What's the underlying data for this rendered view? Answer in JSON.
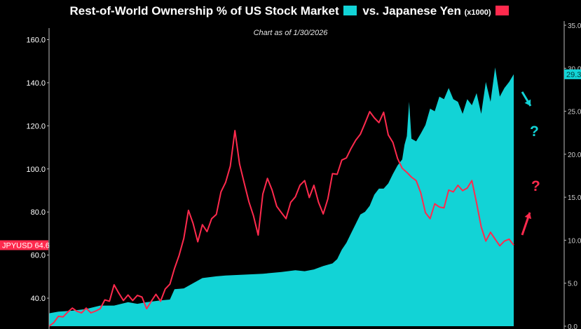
{
  "chart_data": {
    "type": "area",
    "title_main": "Rest-of-World Ownership % of US Stock Market",
    "title_vs": "vs. Japanese Yen",
    "title_unit": "(x1000)",
    "subtitle": "Chart as of 1/30/2026",
    "left_axis": {
      "ticks": [
        40,
        60,
        80,
        100,
        120,
        140,
        160
      ],
      "tick_labels": [
        "40.0",
        "60.0",
        "80.0",
        "100.0",
        "120.0",
        "140.0",
        "160.0"
      ],
      "range": [
        27,
        167
      ]
    },
    "right_axis": {
      "ticks": [
        0,
        5,
        10,
        15,
        20,
        25,
        30,
        35
      ],
      "tick_labels": [
        "0.0",
        "5.0",
        "10.0",
        "15.0",
        "20.0",
        "25.0",
        "30.0",
        "35.0"
      ],
      "range": [
        0,
        35
      ]
    },
    "series": [
      {
        "name": "Rest-of-World Ownership % of US Stock Market",
        "axis": "right",
        "color": "#12d3d6",
        "last_value_label": "29.3",
        "points": [
          [
            0,
            1.5
          ],
          [
            0.02,
            1.7
          ],
          [
            0.05,
            1.8
          ],
          [
            0.08,
            2.0
          ],
          [
            0.11,
            2.4
          ],
          [
            0.14,
            2.4
          ],
          [
            0.17,
            2.8
          ],
          [
            0.19,
            2.6
          ],
          [
            0.21,
            2.8
          ],
          [
            0.24,
            3.0
          ],
          [
            0.26,
            3.1
          ],
          [
            0.27,
            4.3
          ],
          [
            0.29,
            4.4
          ],
          [
            0.31,
            5.0
          ],
          [
            0.33,
            5.6
          ],
          [
            0.36,
            5.8
          ],
          [
            0.38,
            5.9
          ],
          [
            0.42,
            6.0
          ],
          [
            0.46,
            6.1
          ],
          [
            0.5,
            6.3
          ],
          [
            0.53,
            6.5
          ],
          [
            0.55,
            6.4
          ],
          [
            0.57,
            6.6
          ],
          [
            0.59,
            7.0
          ],
          [
            0.61,
            7.3
          ],
          [
            0.62,
            7.8
          ],
          [
            0.63,
            8.9
          ],
          [
            0.64,
            9.7
          ],
          [
            0.65,
            10.8
          ],
          [
            0.66,
            11.9
          ],
          [
            0.67,
            13.0
          ],
          [
            0.68,
            13.3
          ],
          [
            0.69,
            14.0
          ],
          [
            0.7,
            15.3
          ],
          [
            0.71,
            16.0
          ],
          [
            0.72,
            16.0
          ],
          [
            0.73,
            16.6
          ],
          [
            0.74,
            17.7
          ],
          [
            0.75,
            18.7
          ],
          [
            0.76,
            19.4
          ],
          [
            0.765,
            21.1
          ],
          [
            0.77,
            22.1
          ],
          [
            0.775,
            26.1
          ],
          [
            0.78,
            21.8
          ],
          [
            0.79,
            21.5
          ],
          [
            0.8,
            22.4
          ],
          [
            0.81,
            23.4
          ],
          [
            0.82,
            25.3
          ],
          [
            0.83,
            25.0
          ],
          [
            0.84,
            26.7
          ],
          [
            0.85,
            26.4
          ],
          [
            0.86,
            27.7
          ],
          [
            0.87,
            26.4
          ],
          [
            0.88,
            26.1
          ],
          [
            0.89,
            24.7
          ],
          [
            0.9,
            26.4
          ],
          [
            0.91,
            25.7
          ],
          [
            0.92,
            27.1
          ],
          [
            0.93,
            24.7
          ],
          [
            0.94,
            28.4
          ],
          [
            0.95,
            26.1
          ],
          [
            0.96,
            30.1
          ],
          [
            0.97,
            26.7
          ],
          [
            0.98,
            27.7
          ],
          [
            0.99,
            28.4
          ],
          [
            1,
            29.3
          ]
        ]
      },
      {
        "name": "Japanese Yen (x1000)",
        "axis": "left",
        "color": "#ff2a4d",
        "last_value_label": "JPYUSD 64.6",
        "points": [
          [
            0,
            27.0
          ],
          [
            0.01,
            28.6
          ],
          [
            0.02,
            31.6
          ],
          [
            0.03,
            31.3
          ],
          [
            0.04,
            33.5
          ],
          [
            0.05,
            35.4
          ],
          [
            0.06,
            33.9
          ],
          [
            0.07,
            33.2
          ],
          [
            0.08,
            35.4
          ],
          [
            0.09,
            33.2
          ],
          [
            0.1,
            34.0
          ],
          [
            0.11,
            35.1
          ],
          [
            0.12,
            39.2
          ],
          [
            0.13,
            38.6
          ],
          [
            0.14,
            46.2
          ],
          [
            0.15,
            42.4
          ],
          [
            0.16,
            38.9
          ],
          [
            0.17,
            41.5
          ],
          [
            0.18,
            38.9
          ],
          [
            0.19,
            41.3
          ],
          [
            0.2,
            40.5
          ],
          [
            0.21,
            35.1
          ],
          [
            0.22,
            38.6
          ],
          [
            0.23,
            41.8
          ],
          [
            0.24,
            38.6
          ],
          [
            0.25,
            44.3
          ],
          [
            0.26,
            46.5
          ],
          [
            0.27,
            53.8
          ],
          [
            0.28,
            59.9
          ],
          [
            0.29,
            67.8
          ],
          [
            0.3,
            80.8
          ],
          [
            0.31,
            74.7
          ],
          [
            0.32,
            66.2
          ],
          [
            0.33,
            74.1
          ],
          [
            0.34,
            70.9
          ],
          [
            0.35,
            76.9
          ],
          [
            0.36,
            78.9
          ],
          [
            0.37,
            89.3
          ],
          [
            0.38,
            93.7
          ],
          [
            0.39,
            101.3
          ],
          [
            0.4,
            117.8
          ],
          [
            0.41,
            102.3
          ],
          [
            0.42,
            93.4
          ],
          [
            0.43,
            84.8
          ],
          [
            0.44,
            78.2
          ],
          [
            0.45,
            69.3
          ],
          [
            0.46,
            88.3
          ],
          [
            0.47,
            95.6
          ],
          [
            0.48,
            90.2
          ],
          [
            0.49,
            82.6
          ],
          [
            0.5,
            79.7
          ],
          [
            0.51,
            76.9
          ],
          [
            0.52,
            84.5
          ],
          [
            0.53,
            87.0
          ],
          [
            0.54,
            92.4
          ],
          [
            0.55,
            94.6
          ],
          [
            0.56,
            86.7
          ],
          [
            0.57,
            92.4
          ],
          [
            0.58,
            84.5
          ],
          [
            0.59,
            79.1
          ],
          [
            0.6,
            86.1
          ],
          [
            0.61,
            97.8
          ],
          [
            0.62,
            97.5
          ],
          [
            0.63,
            104.1
          ],
          [
            0.64,
            105.1
          ],
          [
            0.65,
            109.5
          ],
          [
            0.66,
            113.3
          ],
          [
            0.67,
            116.1
          ],
          [
            0.68,
            121.2
          ],
          [
            0.69,
            126.6
          ],
          [
            0.7,
            123.7
          ],
          [
            0.71,
            121.5
          ],
          [
            0.72,
            126.3
          ],
          [
            0.73,
            115.8
          ],
          [
            0.74,
            112.3
          ],
          [
            0.75,
            104.8
          ],
          [
            0.76,
            100.3
          ],
          [
            0.77,
            98.4
          ],
          [
            0.78,
            96.2
          ],
          [
            0.79,
            94.6
          ],
          [
            0.8,
            88.9
          ],
          [
            0.81,
            79.7
          ],
          [
            0.82,
            76.9
          ],
          [
            0.83,
            83.8
          ],
          [
            0.84,
            82.3
          ],
          [
            0.85,
            81.9
          ],
          [
            0.86,
            90.2
          ],
          [
            0.87,
            89.3
          ],
          [
            0.88,
            92.4
          ],
          [
            0.89,
            89.9
          ],
          [
            0.9,
            91.1
          ],
          [
            0.91,
            94.6
          ],
          [
            0.92,
            84.2
          ],
          [
            0.93,
            73.1
          ],
          [
            0.94,
            66.5
          ],
          [
            0.95,
            70.6
          ],
          [
            0.96,
            67.4
          ],
          [
            0.97,
            64.3
          ],
          [
            0.98,
            66.5
          ],
          [
            0.99,
            67.4
          ],
          [
            1,
            64.6
          ]
        ]
      }
    ],
    "annotations": [
      {
        "text": "?",
        "color": "#12d3d6",
        "role": "arrow-down-cyan"
      },
      {
        "text": "?",
        "color": "#ff2a4d",
        "role": "arrow-up-red"
      }
    ],
    "grid": false,
    "legend": "in-title"
  }
}
